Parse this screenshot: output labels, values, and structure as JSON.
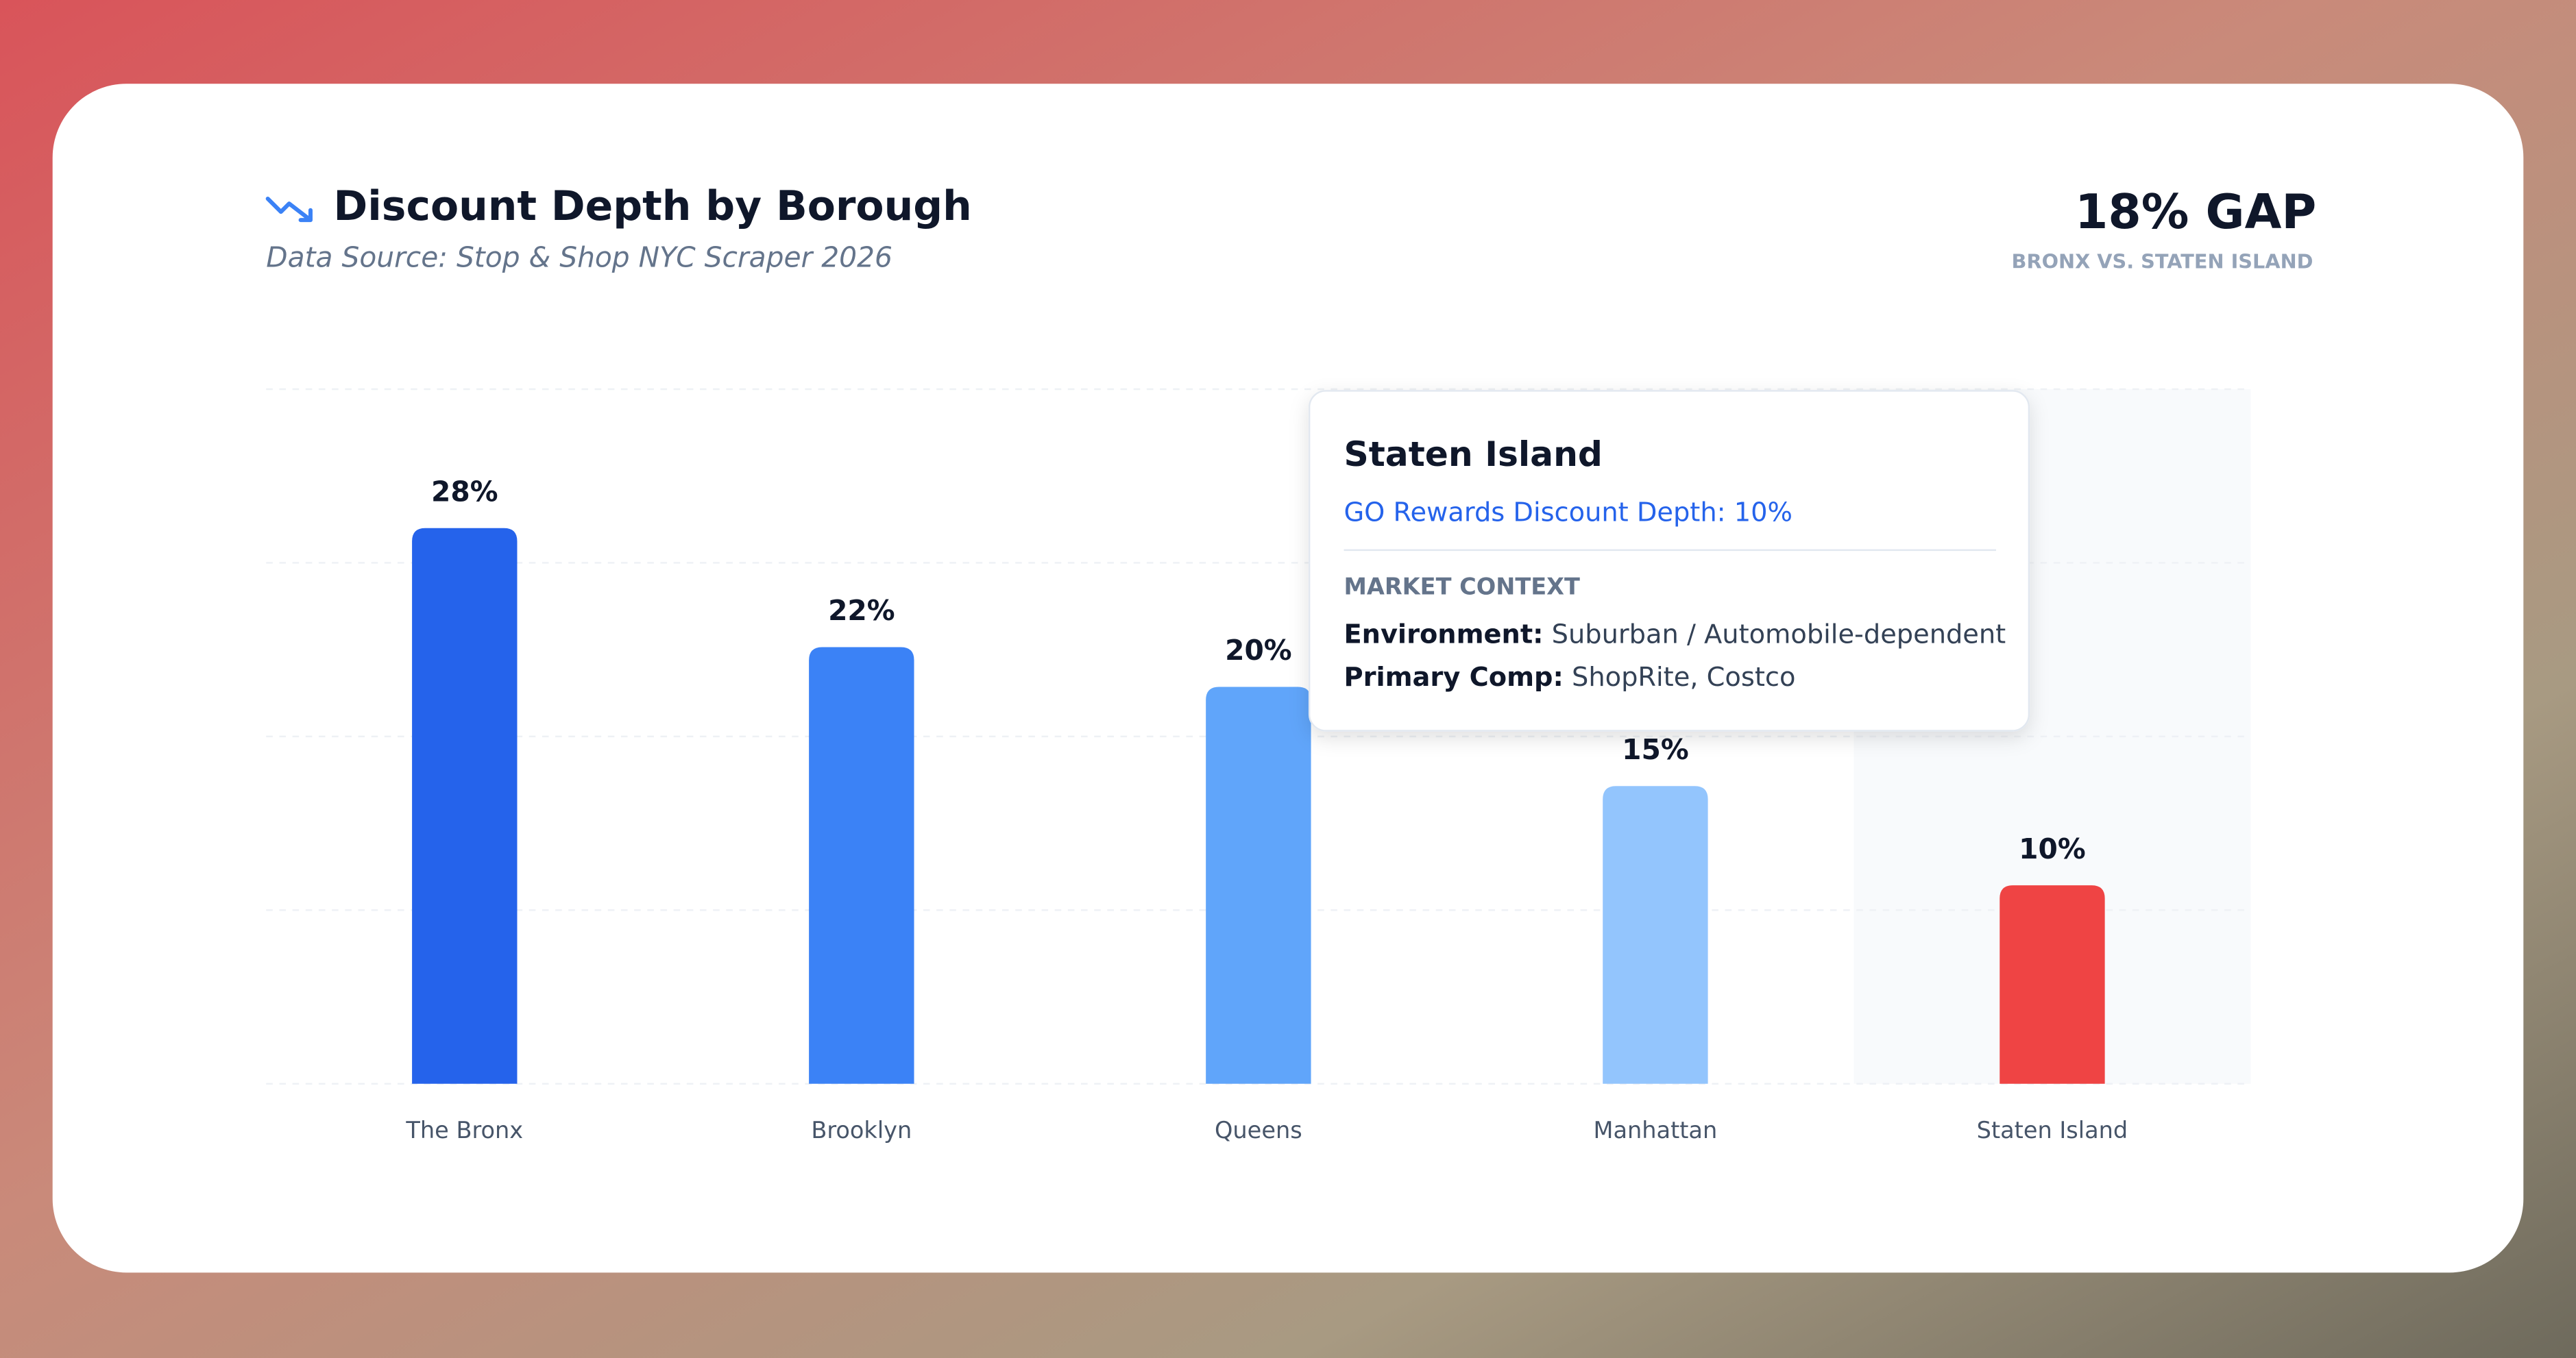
{
  "chart_data": {
    "type": "bar",
    "title": "Discount Depth by Borough",
    "subtitle": "Data Source: Stop & Shop NYC Scraper 2026",
    "headline": "18% GAP",
    "headline_caption": "BRONX VS. STATEN ISLAND",
    "categories": [
      "The Bronx",
      "Brooklyn",
      "Queens",
      "Manhattan",
      "Staten Island"
    ],
    "series": [
      {
        "name": "GO Rewards Discount Depth",
        "colors": [
          "#2563eb",
          "#3b82f6",
          "#60a5fa",
          "#93c5fd",
          "#ef4444"
        ],
        "values": [
          28,
          22,
          20,
          15,
          10
        ],
        "value_labels": [
          "28%",
          "22%",
          "20%",
          "15%",
          "10%"
        ]
      }
    ],
    "ylim": [
      0,
      35
    ],
    "yticks": [
      0,
      8.75,
      17.5,
      26.25,
      35
    ],
    "grid": true,
    "tooltip": {
      "title": "Staten Island",
      "line": "GO Rewards Discount Depth: 10%",
      "section": "MARKET CONTEXT",
      "rows": [
        {
          "label": "Environment:",
          "value": "Suburban / Automobile-dependent"
        },
        {
          "label": "Primary Comp:",
          "value": "ShopRite, Costco"
        }
      ]
    }
  }
}
